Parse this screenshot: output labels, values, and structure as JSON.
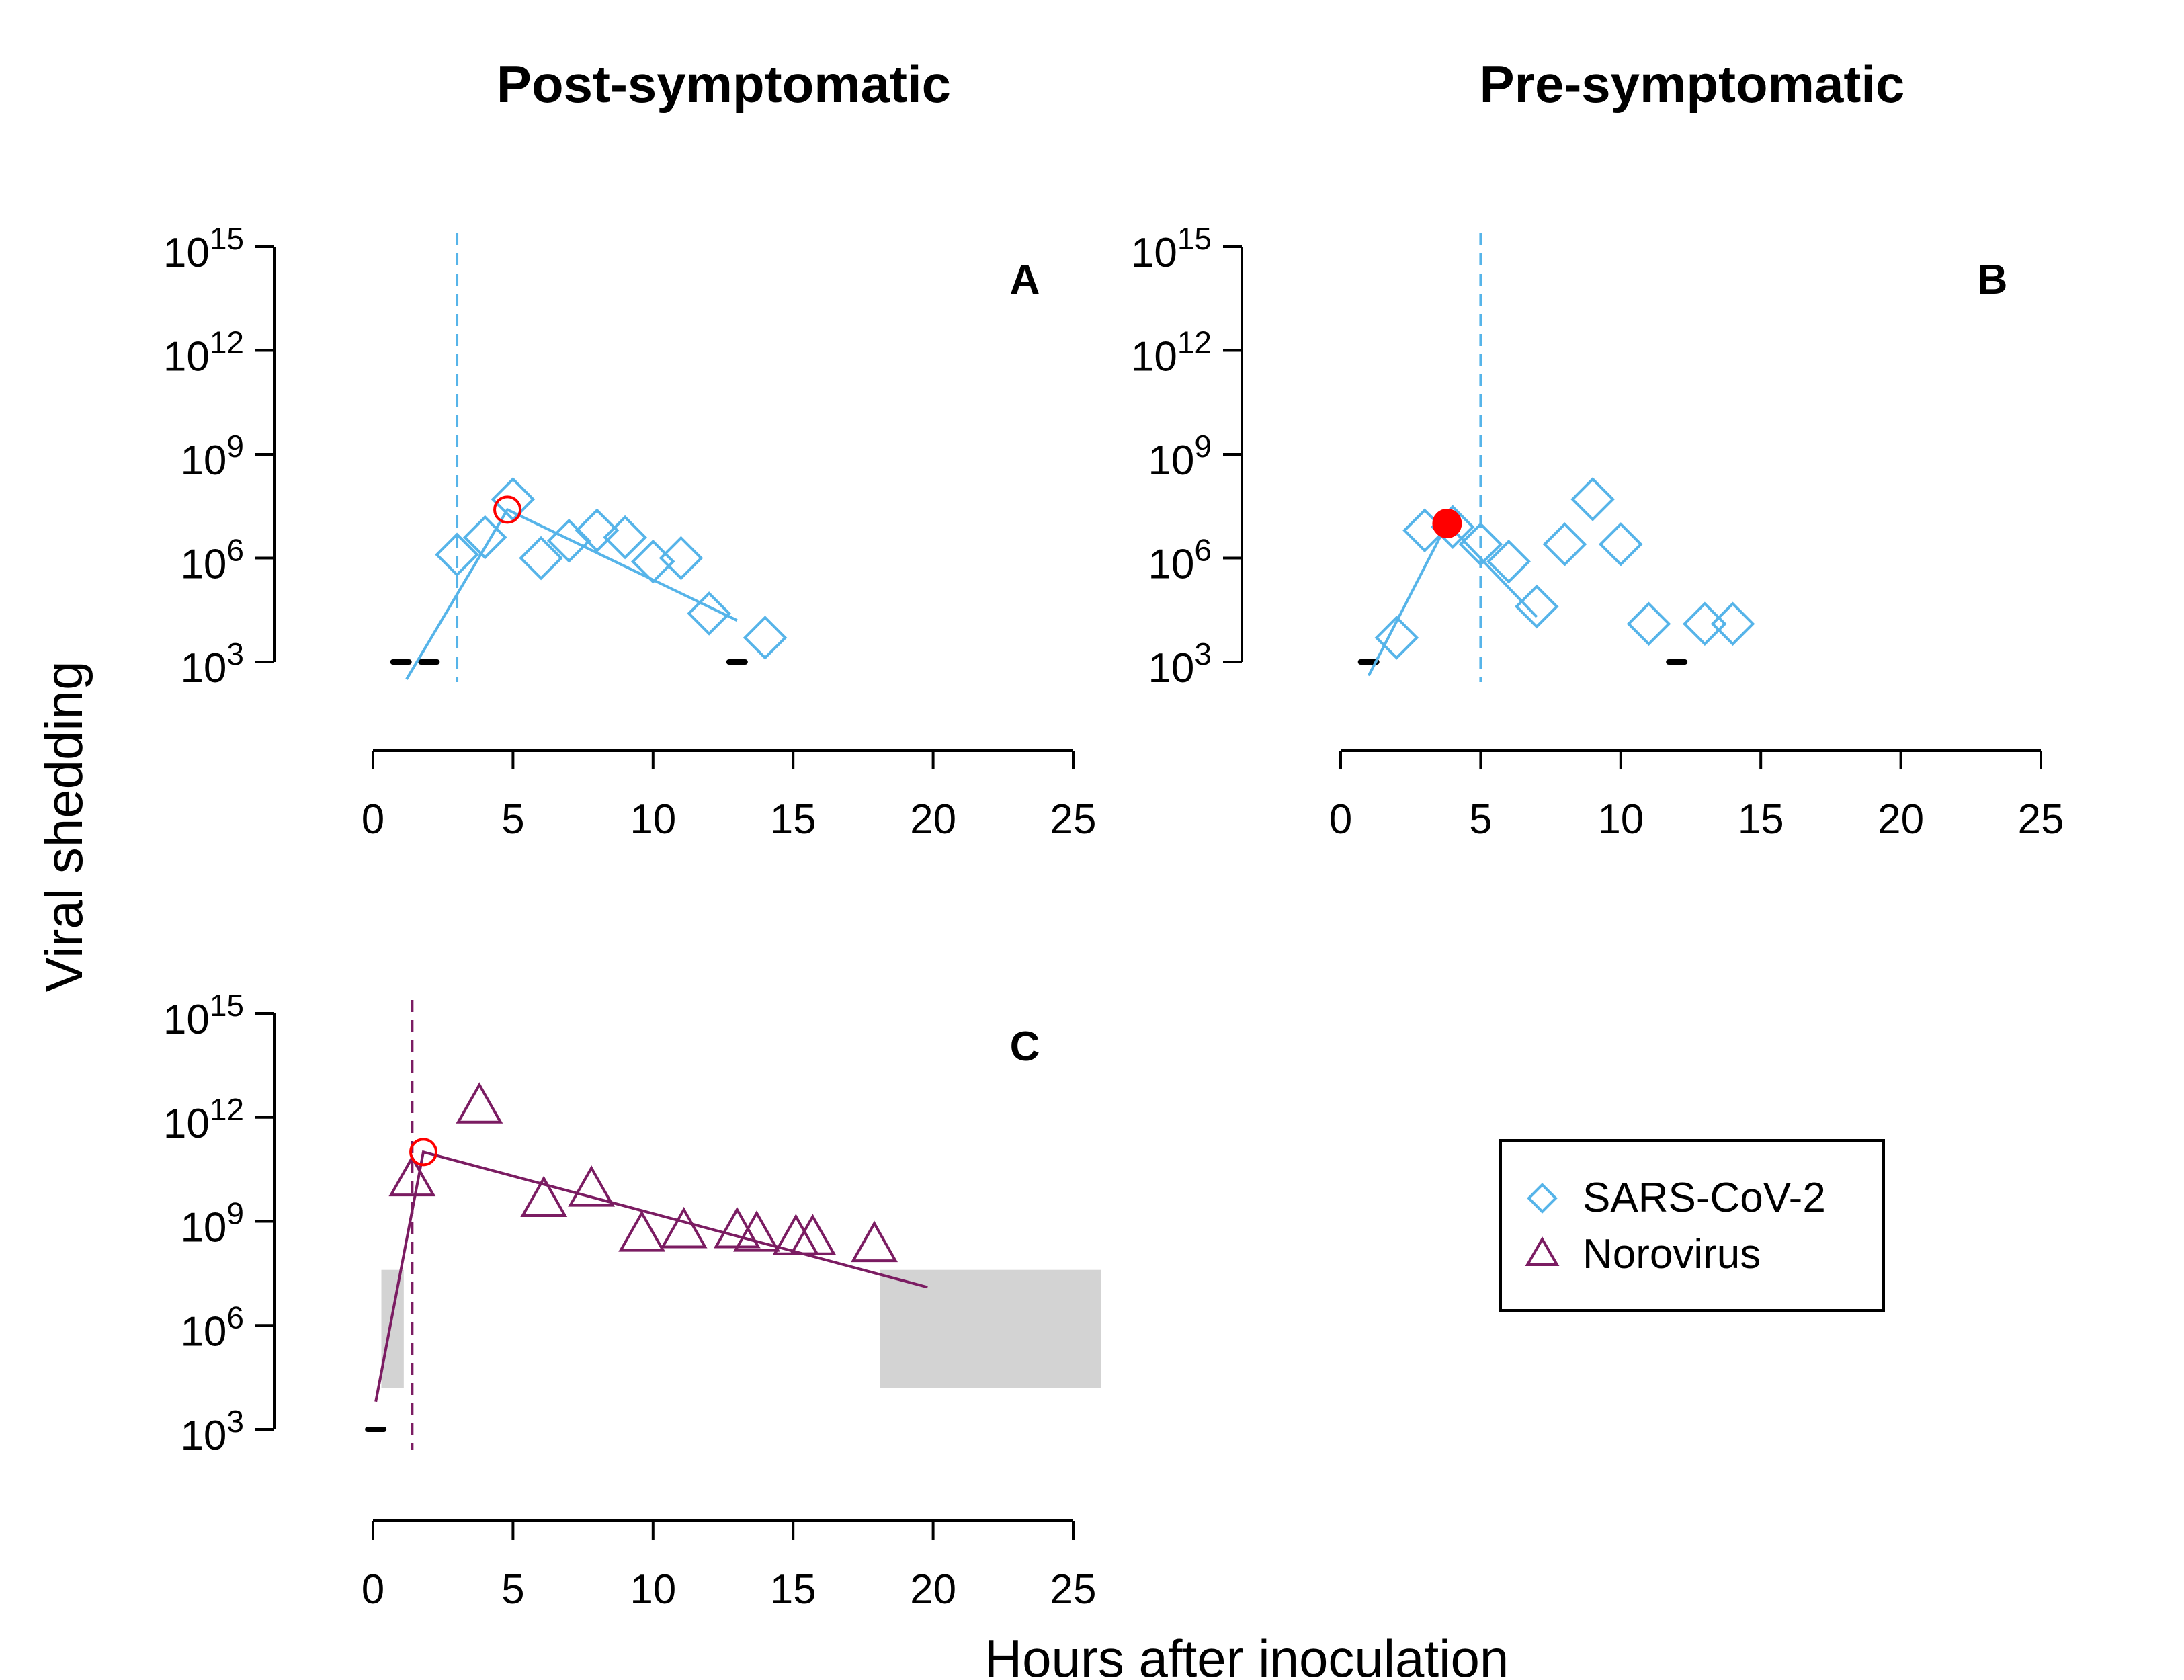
{
  "chart_data": [
    {
      "type": "scatter",
      "panel_label": "A",
      "title": "Post-symptomatic",
      "xlabel": "",
      "ylabel": "",
      "xlim": [
        0,
        25
      ],
      "ylim": [
        3,
        15
      ],
      "y_scale": "log10",
      "x_ticks": [
        "0",
        "5",
        "10",
        "15",
        "20",
        "25"
      ],
      "y_ticks": [
        {
          "base": "10",
          "exp": "3"
        },
        {
          "base": "10",
          "exp": "6"
        },
        {
          "base": "10",
          "exp": "9"
        },
        {
          "base": "10",
          "exp": "12"
        },
        {
          "base": "10",
          "exp": "15"
        }
      ],
      "series_color": "#56B4E9",
      "symptom_onset_x": 3,
      "points": [
        {
          "x": 3,
          "y": 6.1
        },
        {
          "x": 4,
          "y": 6.6
        },
        {
          "x": 5,
          "y": 7.7
        },
        {
          "x": 6,
          "y": 6.0
        },
        {
          "x": 7,
          "y": 6.5
        },
        {
          "x": 8,
          "y": 6.8
        },
        {
          "x": 9,
          "y": 6.6
        },
        {
          "x": 10,
          "y": 5.9
        },
        {
          "x": 11,
          "y": 6.0
        },
        {
          "x": 12,
          "y": 4.4
        },
        {
          "x": 14,
          "y": 3.7
        }
      ],
      "fit_line": [
        [
          1.2,
          2.5
        ],
        [
          4.8,
          7.4
        ],
        [
          13.0,
          4.2
        ]
      ],
      "peak_marker": {
        "x": 4.8,
        "y": 7.4,
        "style": "open-red-circle"
      },
      "below_detection_dashes": [
        1.0,
        2.0,
        13.0
      ]
    },
    {
      "type": "scatter",
      "panel_label": "B",
      "title": "Pre-symptomatic",
      "xlabel": "",
      "ylabel": "",
      "xlim": [
        0,
        25
      ],
      "ylim": [
        3,
        15
      ],
      "y_scale": "log10",
      "x_ticks": [
        "0",
        "5",
        "10",
        "15",
        "20",
        "25"
      ],
      "y_ticks": [
        {
          "base": "10",
          "exp": "3"
        },
        {
          "base": "10",
          "exp": "6"
        },
        {
          "base": "10",
          "exp": "9"
        },
        {
          "base": "10",
          "exp": "12"
        },
        {
          "base": "10",
          "exp": "15"
        }
      ],
      "series_color": "#56B4E9",
      "symptom_onset_x": 5,
      "points": [
        {
          "x": 2,
          "y": 3.7
        },
        {
          "x": 3,
          "y": 6.8
        },
        {
          "x": 4,
          "y": 6.9
        },
        {
          "x": 5,
          "y": 6.4
        },
        {
          "x": 6,
          "y": 5.9
        },
        {
          "x": 7,
          "y": 4.6
        },
        {
          "x": 8,
          "y": 6.4
        },
        {
          "x": 9,
          "y": 7.7
        },
        {
          "x": 10,
          "y": 6.4
        },
        {
          "x": 11,
          "y": 4.1
        },
        {
          "x": 13,
          "y": 4.1
        },
        {
          "x": 14,
          "y": 4.1
        }
      ],
      "fit_line": [
        [
          1.0,
          2.6
        ],
        [
          3.8,
          7.0
        ],
        [
          7.0,
          4.3
        ]
      ],
      "peak_marker": {
        "x": 3.8,
        "y": 7.0,
        "style": "filled-red-circle"
      },
      "below_detection_dashes": [
        1.0,
        12.0
      ]
    },
    {
      "type": "scatter",
      "panel_label": "C",
      "title": "",
      "xlabel": "",
      "ylabel": "",
      "xlim": [
        0,
        25
      ],
      "ylim": [
        3,
        15
      ],
      "y_scale": "log10",
      "x_ticks": [
        "0",
        "5",
        "10",
        "15",
        "20",
        "25"
      ],
      "y_ticks": [
        {
          "base": "10",
          "exp": "3"
        },
        {
          "base": "10",
          "exp": "6"
        },
        {
          "base": "10",
          "exp": "9"
        },
        {
          "base": "10",
          "exp": "12"
        },
        {
          "base": "10",
          "exp": "15"
        }
      ],
      "series_color": "#7B1C62",
      "symptom_onset_x": 1.4,
      "points": [
        {
          "x": 1.4,
          "y": 10.2
        },
        {
          "x": 3.8,
          "y": 12.3
        },
        {
          "x": 6.1,
          "y": 9.6
        },
        {
          "x": 7.8,
          "y": 9.9
        },
        {
          "x": 9.6,
          "y": 8.6
        },
        {
          "x": 11.1,
          "y": 8.7
        },
        {
          "x": 13.0,
          "y": 8.7
        },
        {
          "x": 13.7,
          "y": 8.6
        },
        {
          "x": 15.1,
          "y": 8.5
        },
        {
          "x": 15.7,
          "y": 8.5
        },
        {
          "x": 17.9,
          "y": 8.3
        }
      ],
      "fit_line": [
        [
          0.1,
          3.8
        ],
        [
          1.8,
          11.0
        ],
        [
          19.8,
          7.1
        ]
      ],
      "peak_marker": {
        "x": 1.8,
        "y": 11.0,
        "style": "open-red-circle"
      },
      "below_detection_dashes": [
        0.1
      ],
      "shaded_regions": [
        {
          "x0": 0.3,
          "x1": 1.1,
          "y0": 4.2,
          "y1": 7.6
        },
        {
          "x0": 18.1,
          "x1": 26.0,
          "y0": 4.2,
          "y1": 7.6
        }
      ]
    }
  ],
  "shared": {
    "ylabel": "Viral shedding",
    "xlabel": "Hours after inoculation"
  },
  "legend": {
    "placement": "right-middle",
    "items": [
      {
        "label": "SARS-CoV-2",
        "marker": "diamond",
        "color": "#56B4E9"
      },
      {
        "label": "Norovirus",
        "marker": "triangle",
        "color": "#7B1C62"
      }
    ]
  },
  "colors": {
    "sars": "#56B4E9",
    "noro": "#7B1C62",
    "peak": "#FF0000",
    "shade": "#D3D3D3",
    "axis": "#000000"
  }
}
